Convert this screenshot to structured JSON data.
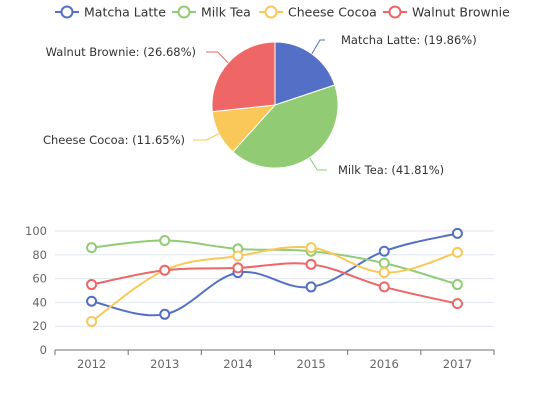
{
  "chart_data": [
    {
      "type": "pie",
      "legend": {
        "placement": "top-center",
        "entries": [
          {
            "name": "Matcha Latte",
            "color": "#5470c6"
          },
          {
            "name": "Milk Tea",
            "color": "#91cc75"
          },
          {
            "name": "Cheese Cocoa",
            "color": "#fac858"
          },
          {
            "name": "Walnut Brownie",
            "color": "#ee6666"
          }
        ]
      },
      "slices": [
        {
          "name": "Matcha Latte",
          "percent": 19.86,
          "label": "Matcha Latte:  (19.86%)",
          "color": "#5470c6"
        },
        {
          "name": "Milk Tea",
          "percent": 41.81,
          "label": "Milk Tea:  (41.81%)",
          "color": "#91cc75"
        },
        {
          "name": "Cheese Cocoa",
          "percent": 11.65,
          "label": "Cheese Cocoa:  (11.65%)",
          "color": "#fac858"
        },
        {
          "name": "Walnut Brownie",
          "percent": 26.68,
          "label": "Walnut Brownie:  (26.68%)",
          "color": "#ee6666"
        }
      ]
    },
    {
      "type": "line",
      "smooth": true,
      "categories": [
        "2012",
        "2013",
        "2014",
        "2015",
        "2016",
        "2017"
      ],
      "ylim": [
        0,
        100
      ],
      "yticks": [
        "0",
        "20",
        "40",
        "60",
        "80",
        "100"
      ],
      "grid": true,
      "series": [
        {
          "name": "Matcha Latte",
          "color": "#5470c6",
          "values": [
            41,
            30,
            65,
            53,
            83,
            98
          ]
        },
        {
          "name": "Milk Tea",
          "color": "#91cc75",
          "values": [
            86,
            92,
            85,
            83,
            73,
            55
          ]
        },
        {
          "name": "Cheese Cocoa",
          "color": "#fac858",
          "values": [
            24,
            67,
            79,
            86,
            65,
            82
          ]
        },
        {
          "name": "Walnut Brownie",
          "color": "#ee6666",
          "values": [
            55,
            67,
            69,
            72,
            53,
            39
          ]
        }
      ]
    }
  ]
}
